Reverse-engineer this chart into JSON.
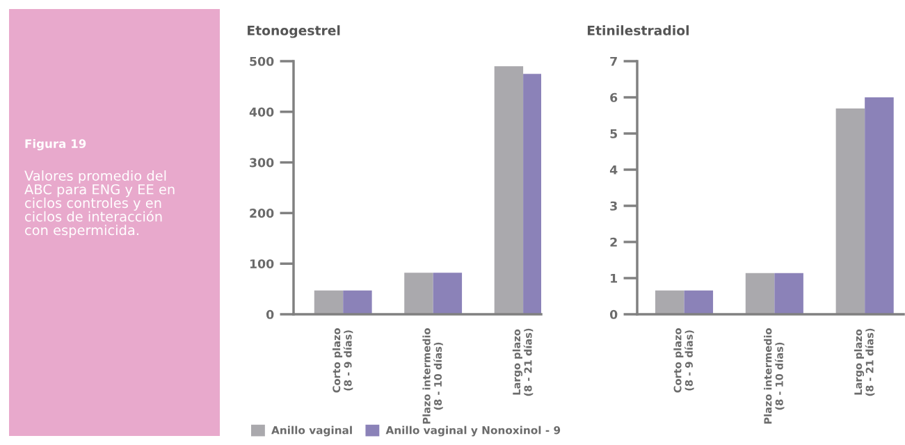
{
  "chart_data": [
    {
      "type": "other",
      "color": "#e8a9cc",
      "title": "Figura 19",
      "annotations": [
        "Valores promedio del ABC para ENG y EE en ciclos controles y en ciclos de interacción con espermicida."
      ]
    },
    {
      "type": "bar",
      "title": "Etonogestrel",
      "categories": [
        "Corto plazo\n(8 - 9 días)",
        "Plazo intermedio\n(8 - 10 días)",
        "Largo plazo\n(8 - 21 días)"
      ],
      "series": [
        {
          "name": "Anillo vaginal",
          "color": "#aaa9ad",
          "values": [
            47,
            82,
            490
          ]
        },
        {
          "name": "Anillo vaginal y Nonoxinol - 9",
          "color": "#8b82b8",
          "values": [
            47,
            82,
            475
          ]
        }
      ],
      "ylim": [
        0,
        500
      ],
      "yticks": [
        0,
        100,
        200,
        300,
        400,
        500
      ],
      "grid": false,
      "legend": "bottom"
    },
    {
      "type": "bar",
      "title": "Etinilestradiol",
      "categories": [
        "Corto plazo\n(8 - 9 días)",
        "Plazo intermedio\n(8 - 10 días)",
        "Largo plazo\n(8 - 21 días)"
      ],
      "series": [
        {
          "color": "#aaa9ad",
          "values": [
            0.66,
            1.14,
            5.69
          ]
        },
        {
          "color": "#8b82b8",
          "values": [
            0.66,
            1.14,
            6.0
          ]
        }
      ],
      "ylim": [
        0,
        7
      ],
      "yticks": [
        0,
        1,
        2,
        3,
        4,
        5,
        6,
        7
      ],
      "grid": false,
      "legend": false
    }
  ]
}
